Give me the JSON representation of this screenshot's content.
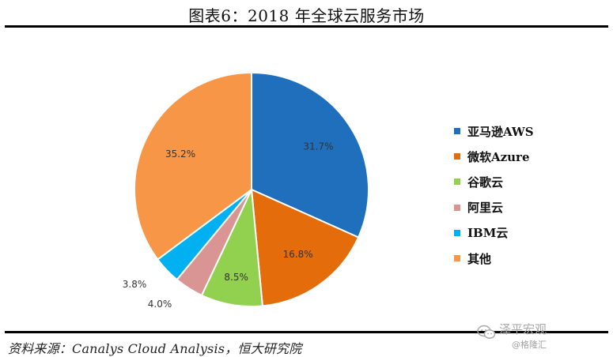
{
  "title": "图表6：2018 年全球云服务市场",
  "source": "资料来源：Canalys Cloud Analysis，恒大研究院",
  "watermark": {
    "main": "泽平宏观",
    "sub": "@格隆汇"
  },
  "chart_data": {
    "type": "pie",
    "title": "图表6：2018 年全球云服务市场",
    "legend_position": "right",
    "start_angle_deg": 0,
    "direction": "clockwise",
    "slices": [
      {
        "name": "亚马逊AWS",
        "value": 31.7,
        "label": "31.7%",
        "color": "#1f6fbd"
      },
      {
        "name": "微软Azure",
        "value": 16.8,
        "label": "16.8%",
        "color": "#e46c0a"
      },
      {
        "name": "谷歌云",
        "value": 8.5,
        "label": "8.5%",
        "color": "#92d050"
      },
      {
        "name": "阿里云",
        "value": 4.0,
        "label": "4.0%",
        "color": "#d99594"
      },
      {
        "name": "IBM云",
        "value": 3.8,
        "label": "3.8%",
        "color": "#00b0f0"
      },
      {
        "name": "其他",
        "value": 35.2,
        "label": "35.2%",
        "color": "#f79646"
      }
    ]
  }
}
